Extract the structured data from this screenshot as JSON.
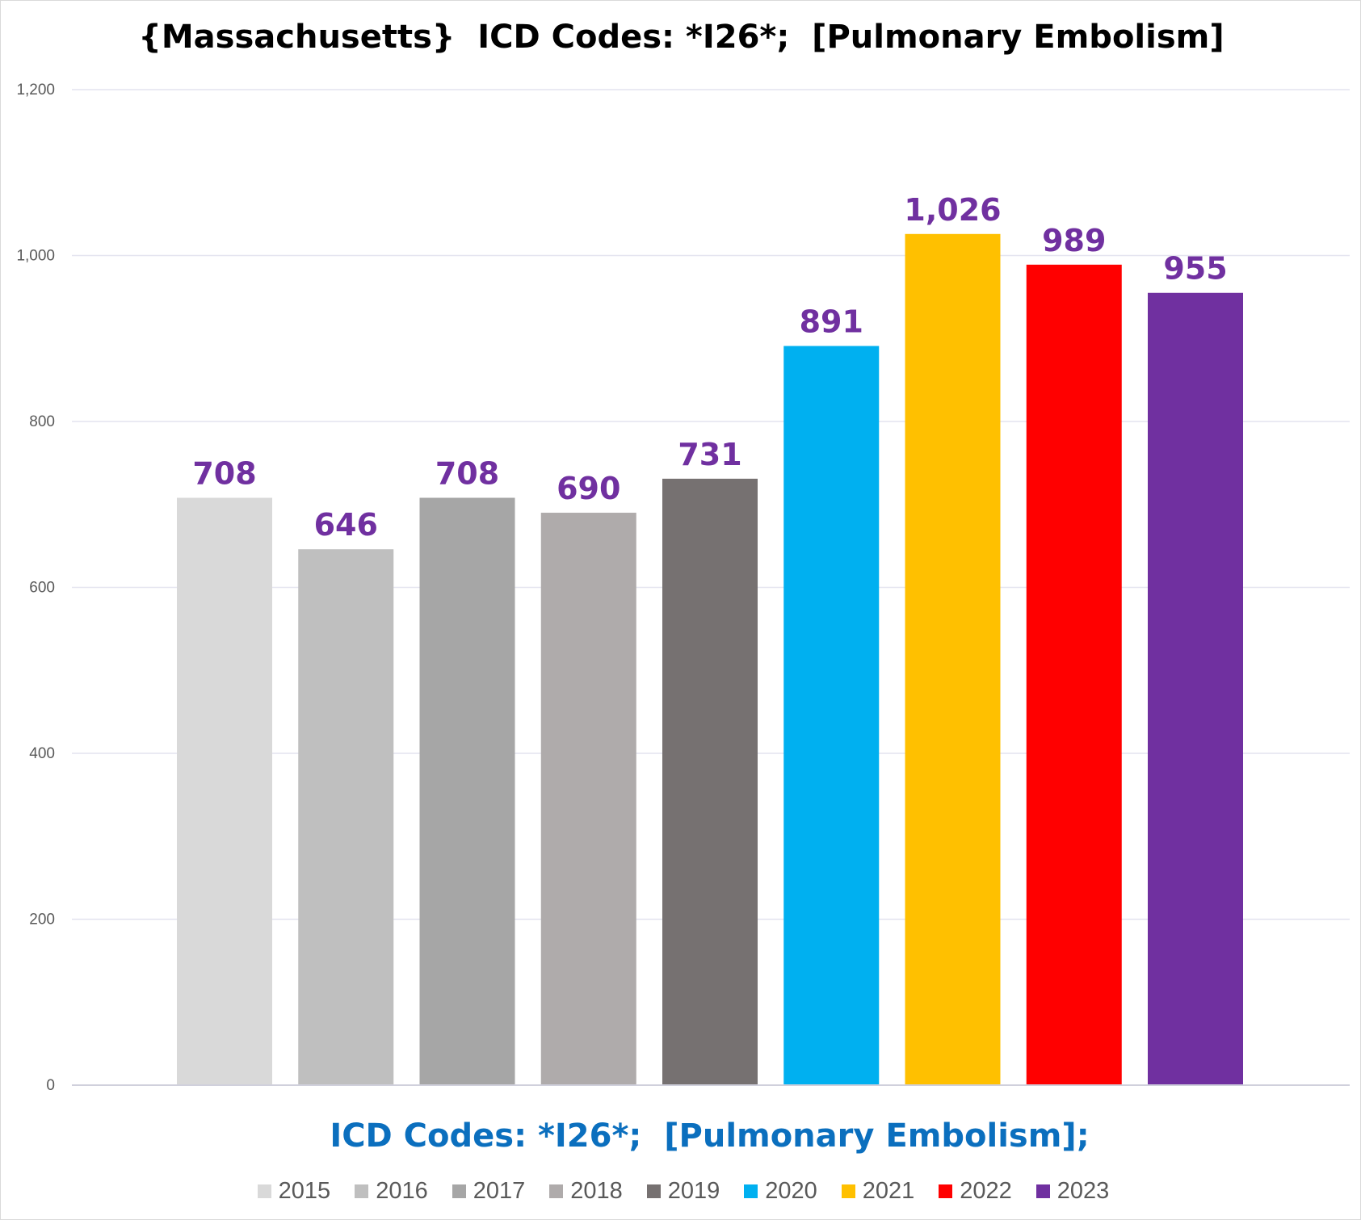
{
  "chart_data": {
    "type": "bar",
    "title": "{Massachusetts}  ICD Codes: *I26*;  [Pulmonary Embolism]",
    "xlabel": "ICD Codes: *I26*;  [Pulmonary Embolism];",
    "ylabel": "",
    "ylim": [
      0,
      1200
    ],
    "yticks": [
      0,
      200,
      400,
      600,
      800,
      1000,
      1200
    ],
    "ytick_labels": [
      "0",
      "200",
      "400",
      "600",
      "800",
      "1,000",
      "1,200"
    ],
    "grid": true,
    "legend_position": "bottom",
    "series": [
      {
        "name": "2015",
        "value": 708,
        "label": "708",
        "color": "#d9d9d9"
      },
      {
        "name": "2016",
        "value": 646,
        "label": "646",
        "color": "#bfbfbf"
      },
      {
        "name": "2017",
        "value": 708,
        "label": "708",
        "color": "#a6a6a6"
      },
      {
        "name": "2018",
        "value": 690,
        "label": "690",
        "color": "#afabab"
      },
      {
        "name": "2019",
        "value": 731,
        "label": "731",
        "color": "#767171"
      },
      {
        "name": "2020",
        "value": 891,
        "label": "891",
        "color": "#00b0f0"
      },
      {
        "name": "2021",
        "value": 1026,
        "label": "1,026",
        "color": "#ffc000"
      },
      {
        "name": "2022",
        "value": 989,
        "label": "989",
        "color": "#ff0000"
      },
      {
        "name": "2023",
        "value": 955,
        "label": "955",
        "color": "#7030a0"
      }
    ],
    "data_label_color": "#7030a0",
    "axis_tick_color": "#595959",
    "gridline_color": "#e4e4ef"
  }
}
